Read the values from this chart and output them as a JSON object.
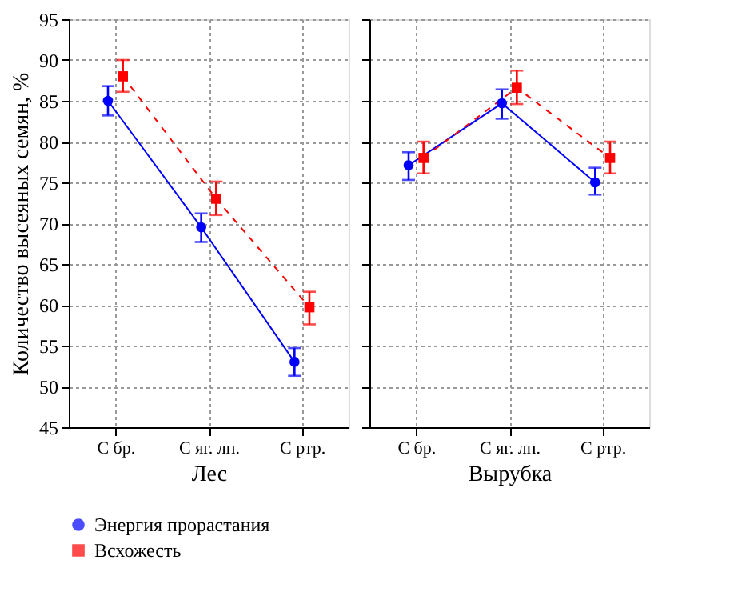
{
  "chart_data": [
    {
      "type": "line",
      "xlabel": "Лес",
      "ylabel": "Количество высеяных семян, %",
      "categories": [
        "С бр.",
        "С яг. лп.",
        "С ртр."
      ],
      "ylim": [
        45,
        95
      ],
      "yticks": [
        45,
        50,
        55,
        60,
        65,
        70,
        75,
        80,
        85,
        90,
        95
      ],
      "grid": true,
      "legend": "bottom",
      "series": [
        {
          "name": "Энергия прорастания",
          "color": "#0000ff",
          "marker": "circle",
          "line_style": "solid",
          "values": [
            85,
            69.5,
            53
          ],
          "errors": [
            [
              83.2,
              86.8
            ],
            [
              67.7,
              71.2
            ],
            [
              51.3,
              54.7
            ]
          ]
        },
        {
          "name": "Всхожесть",
          "color": "#ff0000",
          "marker": "square",
          "line_style": "dashed",
          "values": [
            88,
            73,
            59.7
          ],
          "errors": [
            [
              86.1,
              90
            ],
            [
              71,
              75.1
            ],
            [
              57.6,
              61.6
            ]
          ]
        }
      ]
    },
    {
      "type": "line",
      "xlabel": "Вырубка",
      "categories": [
        "С бр.",
        "С яг. лп.",
        "С ртр."
      ],
      "ylim": [
        45,
        95
      ],
      "yticks": [
        45,
        50,
        55,
        60,
        65,
        70,
        75,
        80,
        85,
        90,
        95
      ],
      "grid": true,
      "tick_labels": "x",
      "series": [
        {
          "name": "Энергия прорастания",
          "color": "#0000ff",
          "marker": "circle",
          "line_style": "solid",
          "values": [
            77.1,
            84.7,
            75
          ],
          "errors": [
            [
              75.3,
              78.7
            ],
            [
              82.8,
              86.4
            ],
            [
              73.5,
              76.8
            ]
          ]
        },
        {
          "name": "Всхожесть",
          "color": "#ff0000",
          "marker": "square",
          "line_style": "dashed",
          "values": [
            78,
            86.6,
            78
          ],
          "errors": [
            [
              76.1,
              80
            ],
            [
              84.6,
              88.7
            ],
            [
              76.1,
              80
            ]
          ]
        }
      ]
    }
  ]
}
